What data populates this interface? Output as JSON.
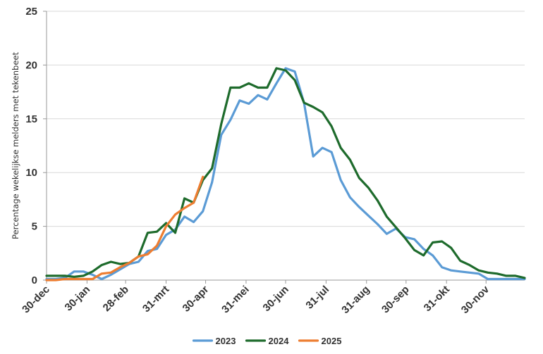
{
  "chart_data": {
    "type": "line",
    "title": "",
    "xlabel": "",
    "ylabel": "Percentage wekelijkse melders met tekenbeet",
    "ylim": [
      0,
      25
    ],
    "yticks": [
      "0",
      "5",
      "10",
      "15",
      "20",
      "25"
    ],
    "xlim": [
      0,
      52
    ],
    "grid": true,
    "legend_position": "bottom-center",
    "x_tick_labels": [
      "30-dec",
      "30-jan",
      "28-feb",
      "31-mrt",
      "30-apr",
      "31-mei",
      "30-jun",
      "31-jul",
      "31-aug",
      "30-sep",
      "31-okt",
      "30-nov"
    ],
    "x_tick_weeks": [
      0,
      4.4,
      8.6,
      13,
      17.3,
      21.7,
      26,
      30.4,
      34.8,
      39.1,
      43.5,
      47.8
    ],
    "series": [
      {
        "name": "2023",
        "color": "#5b9bd5",
        "x": [
          0,
          1,
          2,
          3,
          4,
          5,
          6,
          7,
          8,
          9,
          10,
          11,
          12,
          13,
          14,
          15,
          16,
          17,
          18,
          19,
          20,
          21,
          22,
          23,
          24,
          25,
          26,
          27,
          28,
          29,
          30,
          31,
          32,
          33,
          34,
          35,
          36,
          37,
          38,
          39,
          40,
          41,
          42,
          43,
          44,
          45,
          46,
          47,
          48,
          49,
          50,
          51,
          52
        ],
        "values": [
          0.1,
          0.1,
          0.2,
          0.8,
          0.8,
          0.5,
          0.1,
          0.5,
          1.0,
          1.5,
          1.7,
          2.7,
          2.9,
          4.2,
          4.7,
          5.9,
          5.4,
          6.4,
          9.1,
          13.5,
          14.9,
          16.7,
          16.4,
          17.2,
          16.8,
          18.3,
          19.7,
          19.4,
          16.5,
          11.5,
          12.3,
          11.9,
          9.3,
          7.7,
          6.8,
          6.0,
          5.2,
          4.3,
          4.8,
          4.0,
          3.8,
          2.9,
          2.3,
          1.2,
          0.9,
          0.8,
          0.7,
          0.6,
          0.1,
          0.1,
          0.1,
          0.1,
          0.1
        ]
      },
      {
        "name": "2024",
        "color": "#1e6b2c",
        "x": [
          0,
          1,
          2,
          3,
          4,
          5,
          6,
          7,
          8,
          9,
          10,
          11,
          12,
          13,
          14,
          15,
          16,
          17,
          18,
          19,
          20,
          21,
          22,
          23,
          24,
          25,
          26,
          27,
          28,
          29,
          30,
          31,
          32,
          33,
          34,
          35,
          36,
          37,
          38,
          39,
          40,
          41,
          42,
          43,
          44,
          45,
          46,
          47,
          48,
          49,
          50,
          51,
          52
        ],
        "values": [
          0.4,
          0.4,
          0.4,
          0.3,
          0.4,
          0.8,
          1.4,
          1.7,
          1.5,
          1.6,
          2.2,
          4.4,
          4.5,
          5.3,
          4.4,
          7.6,
          7.2,
          9.3,
          10.4,
          14.5,
          17.9,
          17.9,
          18.3,
          17.9,
          17.9,
          19.7,
          19.5,
          18.6,
          16.5,
          16.1,
          15.6,
          14.3,
          12.3,
          11.2,
          9.5,
          8.6,
          7.4,
          5.9,
          4.9,
          3.9,
          2.8,
          2.3,
          3.5,
          3.6,
          3.0,
          1.8,
          1.4,
          0.9,
          0.7,
          0.6,
          0.4,
          0.4,
          0.2
        ]
      },
      {
        "name": "2025",
        "color": "#ed7d31",
        "x": [
          0,
          1,
          2,
          3,
          4,
          5,
          6,
          7,
          8,
          9,
          10,
          11,
          12,
          13,
          14,
          15,
          16,
          17
        ],
        "values": [
          0.0,
          0.0,
          0.1,
          0.1,
          0.1,
          0.1,
          0.6,
          0.7,
          1.2,
          1.6,
          2.2,
          2.4,
          3.2,
          5.0,
          6.1,
          6.7,
          7.2,
          9.6
        ]
      }
    ]
  }
}
